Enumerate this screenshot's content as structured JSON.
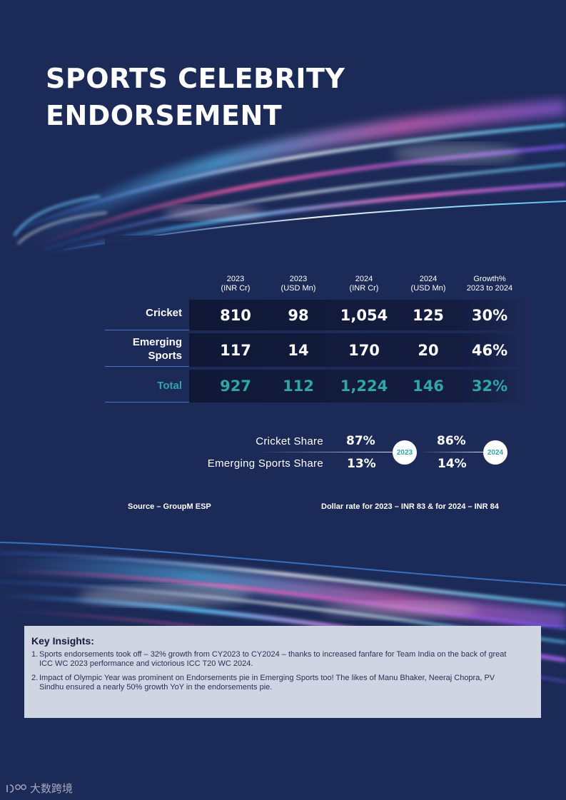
{
  "title": {
    "line1": "SPORTS CELEBRITY",
    "line2": "ENDORSEMENT"
  },
  "table": {
    "headers": [
      {
        "line1": "2023",
        "line2": "(INR Cr)"
      },
      {
        "line1": "2023",
        "line2": "(USD Mn)"
      },
      {
        "line1": "2024",
        "line2": "(INR Cr)"
      },
      {
        "line1": "2024",
        "line2": "(USD Mn)"
      },
      {
        "line1": "Growth%",
        "line2": "2023 to 2024"
      }
    ],
    "rows": [
      {
        "label1": "Cricket",
        "label2": "",
        "values": [
          "810",
          "98",
          "1,054",
          "125",
          "30%"
        ]
      },
      {
        "label1": "Emerging",
        "label2": "Sports",
        "values": [
          "117",
          "14",
          "170",
          "20",
          "46%"
        ]
      },
      {
        "label1": "Total",
        "label2": "",
        "values": [
          "927",
          "112",
          "1,224",
          "146",
          "32%"
        ]
      }
    ]
  },
  "shares": {
    "cricket_label": "Cricket Share",
    "emerging_label": "Emerging Sports Share",
    "y2023": {
      "year": "2023",
      "cricket": "87%",
      "emerging": "13%"
    },
    "y2024": {
      "year": "2024",
      "cricket": "86%",
      "emerging": "14%"
    }
  },
  "notes": {
    "source": "Source – GroupM ESP",
    "dollar_rate": "Dollar rate for 2023 – INR 83 & for 2024 – INR 84"
  },
  "insights": {
    "heading": "Key Insights:",
    "items": [
      {
        "num": "1.",
        "text": "Sports endorsements took off – 32% growth from CY2023 to CY2024 – thanks to increased fanfare for Team India on the back of great ICC WC 2023 performance and victorious ICC T20 WC 2024."
      },
      {
        "num": "2.",
        "text": "Impact of Olympic Year was prominent on Endorsements pie in Emerging Sports too! The likes of Manu Bhaker, Neeraj Chopra, PV Sindhu ensured a nearly 50% growth YoY in the endorsements pie."
      }
    ]
  },
  "watermark": {
    "text": "大数跨境"
  }
}
